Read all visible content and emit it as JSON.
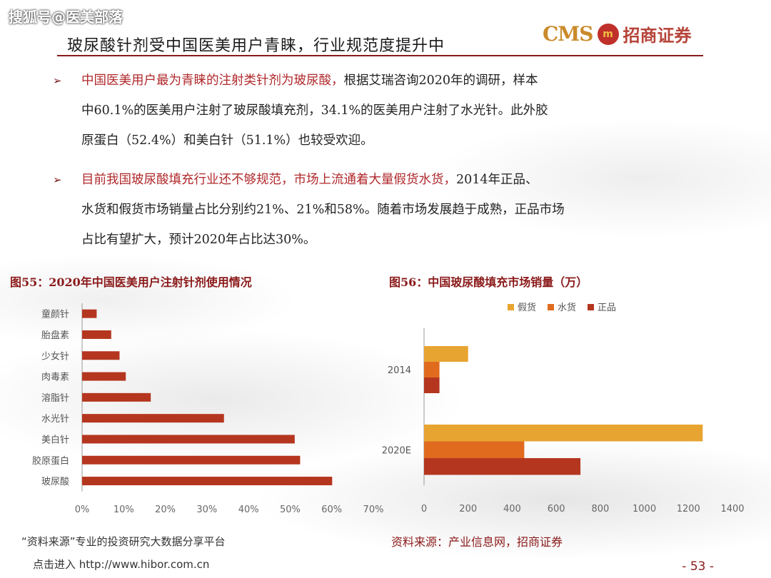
{
  "watermark": "搜狐号@医美部落",
  "title": "玻尿酸针剂受中国医美用户青睐，行业规范度提升中",
  "logo": {
    "cms": "CMS",
    "mark": "m",
    "company": "招商证券"
  },
  "bullets": [
    {
      "highlight": "中国医美用户最为青睐的注射类针剂为玻尿酸，",
      "line1_rest": "根据艾瑞咨询2020年的调研，样本",
      "line2": "中60.1%的医美用户注射了玻尿酸填充剂，34.1%的医美用户注射了水光针。此外胶",
      "line3": "原蛋白（52.4%）和美白针（51.1%）也较受欢迎。"
    },
    {
      "highlight": "目前我国玻尿酸填充行业还不够规范，市场上流通着大量假货水货，",
      "line1_rest": "2014年正品、",
      "line2": "水货和假货市场销量占比分别约21%、21%和58%。随着市场发展趋于成熟，正品市场",
      "line3": "占比有望扩大，预计2020年占比达30%。"
    }
  ],
  "fig55_title": "图55：2020年中国医美用户注射针剂使用情况",
  "fig56_title": "图56：中国玻尿酸填充市场销量（万）",
  "fig56_source": "资料来源：产业信息网，招商证券",
  "hibor_line": "“资料来源”专业的投资研究大数据分享平台",
  "hibor_link": "点击进入 http://www.hibor.com.cn",
  "page_number": "- 53 -",
  "chart_data": [
    {
      "type": "bar",
      "orientation": "horizontal",
      "categories": [
        "童颜针",
        "胎盘素",
        "少女针",
        "肉毒素",
        "溶脂针",
        "水光针",
        "美白针",
        "胶原蛋白",
        "玻尿酸"
      ],
      "values": [
        3.5,
        7,
        9,
        10.5,
        16.5,
        34.1,
        51.1,
        52.4,
        60.1
      ],
      "xlim": [
        0,
        70
      ],
      "ticks": [
        "0%",
        "10%",
        "20%",
        "30%",
        "40%",
        "50%",
        "60%",
        "70%"
      ],
      "tick_values": [
        0,
        10,
        20,
        30,
        40,
        50,
        60,
        70
      ],
      "color": "#b5361f",
      "grid": false
    },
    {
      "type": "bar",
      "orientation": "horizontal",
      "categories": [
        "2014",
        "2020E"
      ],
      "series": [
        {
          "name": "假货",
          "values": [
            200,
            1265
          ],
          "color": "#e8a431"
        },
        {
          "name": "水货",
          "values": [
            70,
            455
          ],
          "color": "#e06b1f"
        },
        {
          "name": "正品",
          "values": [
            70,
            710
          ],
          "color": "#b5361f"
        }
      ],
      "xlim": [
        0,
        1400
      ],
      "ticks": [
        "0",
        "200",
        "400",
        "600",
        "800",
        "1000",
        "1200",
        "1400"
      ],
      "tick_values": [
        0,
        200,
        400,
        600,
        800,
        1000,
        1200,
        1400
      ],
      "legend_position": "top",
      "grid": false
    }
  ]
}
